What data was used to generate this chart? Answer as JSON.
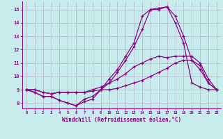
{
  "xlabel": "Windchill (Refroidissement éolien,°C)",
  "bg_color": "#c8ecec",
  "grid_color": "#b0b0cc",
  "line_color": "#880088",
  "xlim": [
    -0.5,
    23.5
  ],
  "ylim": [
    7.6,
    15.6
  ],
  "xticks": [
    0,
    1,
    2,
    3,
    4,
    5,
    6,
    7,
    8,
    9,
    10,
    11,
    12,
    13,
    14,
    15,
    16,
    17,
    18,
    19,
    20,
    21,
    22,
    23
  ],
  "yticks": [
    8,
    9,
    10,
    11,
    12,
    13,
    14,
    15
  ],
  "lines": [
    [
      9.0,
      8.8,
      8.5,
      8.5,
      8.2,
      8.0,
      7.8,
      8.3,
      8.5,
      9.0,
      9.5,
      10.3,
      11.2,
      12.2,
      13.5,
      15.0,
      15.1,
      15.2,
      14.0,
      12.5,
      9.5,
      9.2,
      9.0,
      9.0
    ],
    [
      9.0,
      8.8,
      8.5,
      8.5,
      8.2,
      8.0,
      7.8,
      8.1,
      8.3,
      9.0,
      9.8,
      10.5,
      11.5,
      12.5,
      14.5,
      15.0,
      15.0,
      15.2,
      14.5,
      13.0,
      11.2,
      10.5,
      9.5,
      9.0
    ],
    [
      9.0,
      9.0,
      8.8,
      8.7,
      8.8,
      8.8,
      8.8,
      8.8,
      9.0,
      9.2,
      9.5,
      9.8,
      10.2,
      10.7,
      11.0,
      11.3,
      11.5,
      11.4,
      11.5,
      11.5,
      11.5,
      11.0,
      9.8,
      9.0
    ],
    [
      9.0,
      9.0,
      8.8,
      8.7,
      8.8,
      8.8,
      8.8,
      8.8,
      8.9,
      9.0,
      9.0,
      9.1,
      9.3,
      9.5,
      9.7,
      10.0,
      10.3,
      10.6,
      11.0,
      11.2,
      11.2,
      10.8,
      9.5,
      9.0
    ]
  ]
}
